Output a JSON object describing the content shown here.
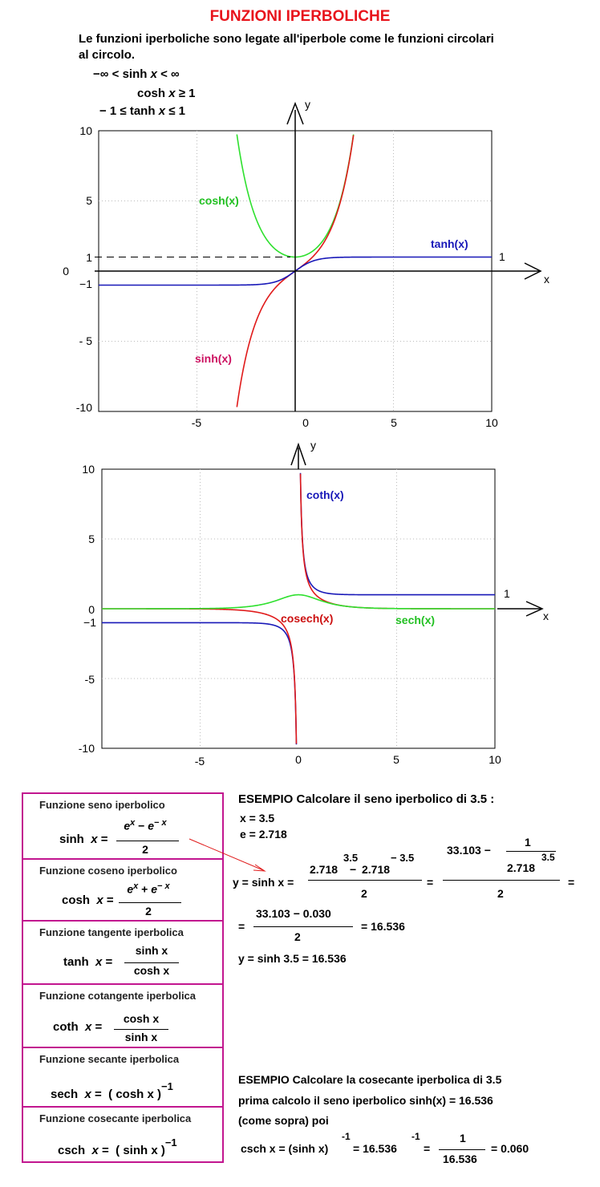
{
  "title": "FUNZIONI IPERBOLICHE",
  "intro": {
    "line1": "Le funzioni iperboliche sono legate all'iperbole come le funzioni circolari",
    "line2": "al circolo."
  },
  "inequalities": {
    "sinh": {
      "left": "−∞ <",
      "func": "sinh",
      "var": "x",
      "right": "< ∞"
    },
    "cosh": {
      "func": "cosh",
      "var": "x",
      "op": "≥",
      "val": "1"
    },
    "tanh": {
      "left": "− 1 ≤",
      "func": "tanh",
      "var": "x",
      "right": "≤ 1"
    }
  },
  "chart_data": [
    {
      "type": "line",
      "x_range": [
        -10,
        10
      ],
      "ylim": [
        -10,
        10
      ],
      "x_ticks": [
        "-5",
        "0",
        "5",
        "10"
      ],
      "y_ticks": [
        "10",
        "5",
        "1",
        "0",
        "−1",
        "- 5",
        "-10"
      ],
      "grid": true,
      "axis_label_x": "x",
      "axis_label_y": "y",
      "dashed_line_at": 1,
      "asymptote_label": "1",
      "series": [
        {
          "name": "cosh(x)",
          "fn": "cosh",
          "color": "#2ee02e"
        },
        {
          "name": "sinh(x)",
          "fn": "sinh",
          "color": "#e01a1a"
        },
        {
          "name": "tanh(x)",
          "fn": "tanh",
          "color": "#1818b8"
        }
      ]
    },
    {
      "type": "line",
      "x_range": [
        -10,
        10
      ],
      "ylim": [
        -10,
        10
      ],
      "x_ticks": [
        "-5",
        "0",
        "5",
        "10"
      ],
      "y_ticks": [
        "10",
        "5",
        "0",
        "−1",
        "-5",
        "-10"
      ],
      "grid": true,
      "axis_label_x": "x",
      "axis_label_y": "y",
      "asymptote_label": "1",
      "series": [
        {
          "name": "coth(x)",
          "fn": "coth",
          "color": "#1818b8"
        },
        {
          "name": "cosech(x)",
          "fn": "csch",
          "color": "#e01a1a"
        },
        {
          "name": "sech(x)",
          "fn": "sech",
          "color": "#2ee02e"
        }
      ]
    }
  ],
  "label_colors": {
    "cosh": "#22c022",
    "sinh": "#cc1060",
    "tanh": "#1818b8",
    "coth": "#1818b8",
    "cosech": "#cc1010",
    "sech": "#22c022"
  },
  "functions": [
    {
      "heading": "Funzione seno iperbolico",
      "lhs": "sinh",
      "var": "x",
      "num_a": "e",
      "num_a_sup": "x",
      "num_op": "−",
      "num_b": "e",
      "num_b_sup": "− x",
      "den": "2"
    },
    {
      "heading": "Funzione coseno iperbolico",
      "lhs": "cosh",
      "var": "x",
      "num_a": "e",
      "num_a_sup": "x",
      "num_op": "+",
      "num_b": "e",
      "num_b_sup": "− x",
      "den": "2"
    },
    {
      "heading": "Funzione tangente iperbolica",
      "lhs": "tanh",
      "var": "x",
      "num": "sinh  x",
      "den": "cosh  x"
    },
    {
      "heading": "Funzione cotangente iperbolica",
      "lhs": "coth",
      "var": "x",
      "num": "cosh  x",
      "den": "sinh  x"
    },
    {
      "heading": "Funzione secante iperbolica",
      "lhs": "sech",
      "var": "x",
      "rhs": "( cosh  x )",
      "exp": "−1"
    },
    {
      "heading": "Funzione cosecante iperbolica",
      "lhs": "csch",
      "var": "x",
      "rhs": "( sinh  x )",
      "exp": "−1"
    }
  ],
  "example1": {
    "heading": "ESEMPIO  Calcolare il seno iperbolico di 3.5 :",
    "x_val": "x =  3.5",
    "e_val": "e = 2.718",
    "y_lhs": "y =  sinh x =",
    "base": "2.718",
    "exp_pos": "3.5",
    "minus": "−",
    "exp_neg": "− 3.5",
    "den": "2",
    "eq": "=",
    "num2": "33.103 −",
    "one": "1",
    "base2": "2.718",
    "exp2": "3.5",
    "den2": "2",
    "eq2": "=",
    "line2_eq": "=",
    "num3": "33.103 −  0.030",
    "den3": "2",
    "result": "=  16.536",
    "final": "y = sinh  3.5 = 16.536"
  },
  "example2": {
    "line1": "ESEMPIO Calcolare la  cosecante  iperbolica di 3.5",
    "line2": "prima calcolo il seno iperbolico  sinh(x) = 16.536",
    "line3": "(come sopra)  poi",
    "lhs": "csch x = (sinh x)",
    "exp1": "-1",
    "mid": "=  16.536",
    "exp2": "-1",
    "eq": "=",
    "num": "1",
    "den": "16.536",
    "result": "=  0.060"
  }
}
